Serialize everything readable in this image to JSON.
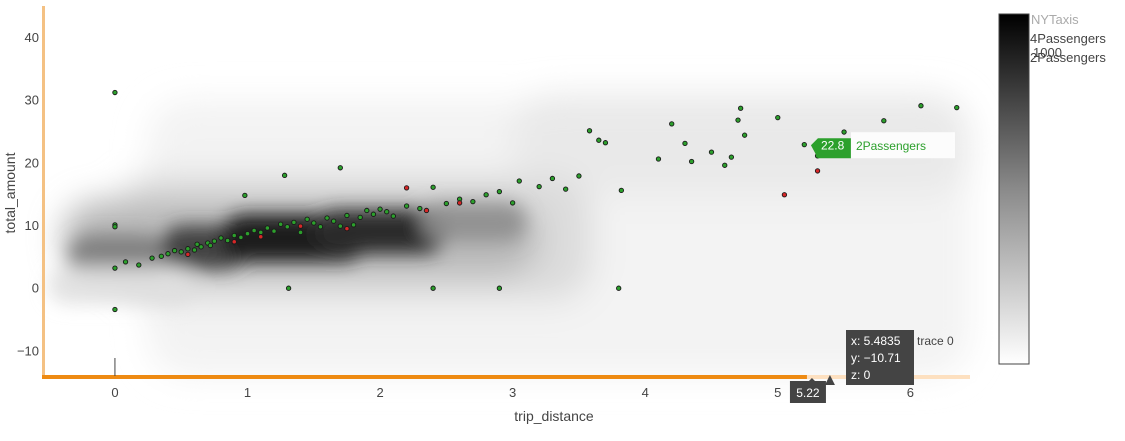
{
  "chart_data": {
    "type": "scatter",
    "xlabel": "trip_distance",
    "ylabel": "total_amount",
    "xlim": [
      -0.52,
      6.45
    ],
    "ylim": [
      -14,
      45
    ],
    "x_ticks": [
      0,
      1,
      2,
      3,
      4,
      5,
      6
    ],
    "y_ticks": [
      -10,
      0,
      10,
      20,
      30,
      40
    ],
    "grid": false,
    "legend": {
      "placement": "top-right",
      "title": "NYTaxis",
      "entries": [
        "4Passengers",
        "2Passengers"
      ]
    },
    "colorbar": {
      "placement": "right",
      "tick_label": "1000",
      "colorscale": [
        "#ffffff",
        "#000000"
      ]
    },
    "density": {
      "name": "trace 0",
      "type": "histogram2dcontour",
      "note": "shaded density of all trips; darkest along the trend at trip_distance 0.5–2.5, total_amount 5–12"
    },
    "series": [
      {
        "name": "2Passengers",
        "color": "#2ca02c",
        "x": [
          0,
          0,
          0,
          0,
          0,
          0.08,
          0.18,
          0.28,
          0.35,
          0.4,
          0.45,
          0.5,
          0.55,
          0.6,
          0.62,
          0.65,
          0.7,
          0.72,
          0.75,
          0.8,
          0.85,
          0.9,
          0.95,
          0.98,
          1.0,
          1.05,
          1.1,
          1.15,
          1.2,
          1.25,
          1.3,
          1.35,
          1.4,
          1.45,
          1.5,
          1.55,
          1.6,
          1.65,
          1.7,
          1.75,
          1.8,
          1.85,
          1.9,
          1.95,
          2.0,
          2.05,
          2.1,
          2.2,
          2.3,
          2.4,
          2.5,
          2.6,
          2.7,
          2.8,
          2.9,
          3.0,
          3.05,
          3.2,
          3.3,
          3.4,
          3.5,
          3.58,
          3.65,
          3.82,
          4.1,
          4.2,
          4.35,
          4.5,
          4.6,
          4.7,
          4.72,
          4.75,
          5.0,
          5.2,
          5.3,
          5.5,
          5.8,
          6.08,
          6.35,
          1.28,
          1.31,
          2.4,
          2.9,
          3.8,
          1.7,
          3.7,
          4.3,
          4.65
        ],
        "y": [
          31.2,
          10.1,
          9.8,
          3.2,
          -3.4,
          4.2,
          3.7,
          4.8,
          5.1,
          5.5,
          6.0,
          5.8,
          6.3,
          6.1,
          7.0,
          6.6,
          7.2,
          6.8,
          7.5,
          8.0,
          7.6,
          8.4,
          8.1,
          14.8,
          8.7,
          9.2,
          8.9,
          9.6,
          9.1,
          10.2,
          9.8,
          10.5,
          8.9,
          11.0,
          10.4,
          9.8,
          11.2,
          10.7,
          9.9,
          11.6,
          10.1,
          11.3,
          12.4,
          11.8,
          12.6,
          12.2,
          11.5,
          13.1,
          12.7,
          16.1,
          13.5,
          14.2,
          13.8,
          14.9,
          15.4,
          13.6,
          17.1,
          16.2,
          17.5,
          15.8,
          17.9,
          25.1,
          23.6,
          15.6,
          20.6,
          26.2,
          20.2,
          21.7,
          19.6,
          26.8,
          28.7,
          24.4,
          27.2,
          22.9,
          21.1,
          24.9,
          26.7,
          29.1,
          28.8,
          18.0,
          0.0,
          0.0,
          0.0,
          0.0,
          19.2,
          23.2,
          23.1,
          20.9
        ]
      },
      {
        "name": "4Passengers",
        "color": "#d62728",
        "x": [
          0.55,
          0.9,
          1.1,
          1.4,
          1.75,
          2.2,
          2.35,
          2.6,
          5.05,
          5.3
        ],
        "y": [
          5.4,
          7.4,
          8.2,
          9.9,
          9.5,
          16.0,
          12.4,
          13.6,
          14.9,
          18.7
        ]
      }
    ],
    "hover_point": {
      "series": "2Passengers",
      "x_value": 5.22,
      "y_value": 22.8,
      "label_value": "22.8",
      "label_name": "2Passengers"
    },
    "cursor_hover": {
      "x_value": 5.22,
      "x_label": "5.22",
      "lines": [
        "x: 5.4835",
        "y: −10.71",
        "z: 0"
      ],
      "trace_label": "trace 0"
    }
  }
}
